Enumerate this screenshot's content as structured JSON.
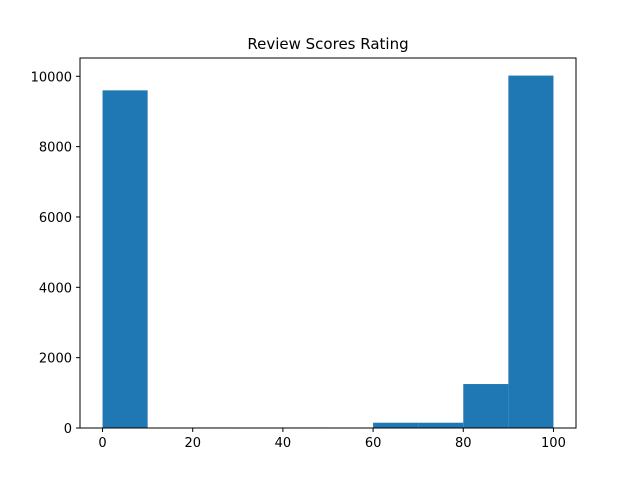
{
  "chart_data": {
    "type": "bar",
    "title": "Review Scores Rating",
    "xlabel": "",
    "ylabel": "",
    "bin_edges": [
      0,
      10,
      20,
      30,
      40,
      50,
      60,
      70,
      80,
      90,
      100
    ],
    "values": [
      9600,
      0,
      15,
      0,
      15,
      0,
      150,
      150,
      1250,
      10020
    ],
    "xlim": [
      -5,
      105
    ],
    "ylim": [
      0,
      10520
    ],
    "xticks": [
      0,
      20,
      40,
      60,
      80,
      100
    ],
    "yticks": [
      0,
      2000,
      4000,
      6000,
      8000,
      10000
    ],
    "bar_color": "#1f77b4",
    "grid": false,
    "legend": "none"
  }
}
